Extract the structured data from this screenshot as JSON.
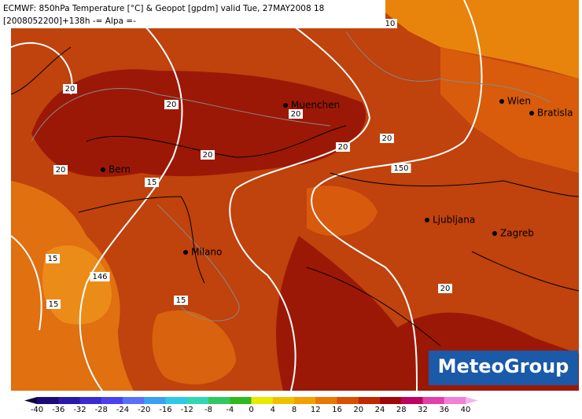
{
  "header": {
    "line1": "ECMWF: 850hPa Temperature [°C] & Geopot [gpdm] valid Tue, 27MAY2008 18",
    "line2": "[2008052200]+138h -= Alpa =-"
  },
  "cities": [
    "Muenchen",
    "Wien",
    "Bratisla",
    "Bern",
    "Milano",
    "Ljubljana",
    "Zagreb"
  ],
  "contour_labels": [
    10,
    20,
    20,
    20,
    20,
    20,
    20,
    20,
    20,
    15,
    15,
    15,
    15,
    146,
    150
  ],
  "legend": {
    "ticks": [
      -40,
      -36,
      -32,
      -28,
      -24,
      -20,
      -16,
      -12,
      -8,
      -4,
      0,
      4,
      8,
      12,
      16,
      20,
      24,
      28,
      32,
      36,
      40
    ],
    "colors": [
      "#14003c",
      "#1c0a78",
      "#2a18a8",
      "#3a2ad0",
      "#4a40f0",
      "#5a70f8",
      "#3aa0f0",
      "#30c8e8",
      "#30d8b0",
      "#30c860",
      "#30b820",
      "#e8e800",
      "#f0c000",
      "#f0a000",
      "#e87800",
      "#d85000",
      "#c02800",
      "#a00808",
      "#c00060",
      "#e040a8",
      "#f080d8",
      "#f8b0f0"
    ]
  },
  "logo": "MeteoGroup"
}
